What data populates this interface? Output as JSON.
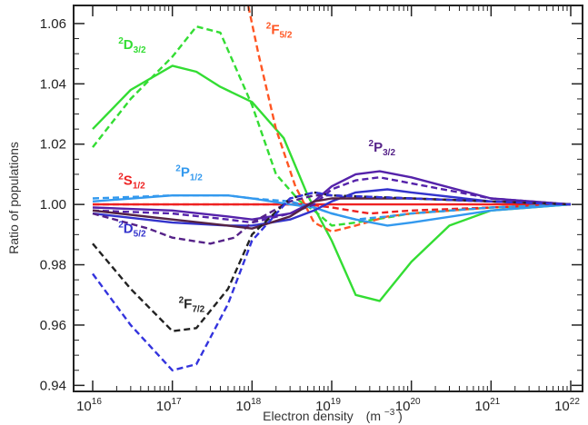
{
  "chart_data": {
    "type": "line",
    "xlabel": "Electron density",
    "xlabel_unit": "(m",
    "xlabel_unit_exp": "−3",
    "xlabel_unit_close": ")",
    "ylabel": "Ratio of populations",
    "x_scale": "log",
    "xlim": [
      1e+16,
      1e+22
    ],
    "ylim": [
      0.938,
      1.066
    ],
    "x_ticks": [
      {
        "value": 1e+16,
        "base": "10",
        "exp": "16"
      },
      {
        "value": 1e+17,
        "base": "10",
        "exp": "17"
      },
      {
        "value": 1e+18,
        "base": "10",
        "exp": "18"
      },
      {
        "value": 1e+19,
        "base": "10",
        "exp": "19"
      },
      {
        "value": 1e+20,
        "base": "10",
        "exp": "20"
      },
      {
        "value": 1e+21,
        "base": "10",
        "exp": "21"
      },
      {
        "value": 1e+22,
        "base": "10",
        "exp": "22"
      }
    ],
    "y_ticks": [
      {
        "value": 0.94,
        "label": "0.94"
      },
      {
        "value": 0.96,
        "label": "0.96"
      },
      {
        "value": 0.98,
        "label": "0.98"
      },
      {
        "value": 1.0,
        "label": "1.00"
      },
      {
        "value": 1.02,
        "label": "1.02"
      },
      {
        "value": 1.04,
        "label": "1.04"
      },
      {
        "value": 1.06,
        "label": "1.06"
      }
    ],
    "reference_line": 1.0,
    "series": [
      {
        "name": "2D3/2 solid",
        "color": "#33dd33",
        "dash": false,
        "x": [
          1e+16,
          3e+16,
          1e+17,
          2e+17,
          4e+17,
          1e+18,
          2.5e+18,
          5e+18,
          1e+19,
          2e+19,
          4e+19,
          1e+20,
          3e+20,
          1e+21,
          1e+22
        ],
        "y": [
          1.025,
          1.038,
          1.046,
          1.044,
          1.039,
          1.034,
          1.022,
          1.003,
          0.988,
          0.97,
          0.968,
          0.981,
          0.993,
          0.998,
          1.0
        ]
      },
      {
        "name": "2D3/2 dashed",
        "color": "#33dd33",
        "dash": true,
        "x": [
          1e+16,
          3e+16,
          1e+17,
          2e+17,
          4e+17,
          1e+18,
          2e+18,
          4e+18,
          6e+18,
          1e+19,
          2e+19,
          1e+20,
          1e+21,
          1e+22
        ],
        "y": [
          1.019,
          1.035,
          1.049,
          1.059,
          1.057,
          1.033,
          1.01,
          1.001,
          0.998,
          0.993,
          0.994,
          0.997,
          0.999,
          1.0
        ]
      },
      {
        "name": "2F5/2 dashed",
        "color": "#ff5522",
        "dash": true,
        "x": [
          9e+17,
          1.2e+18,
          2e+18,
          3.5e+18,
          6e+18,
          1e+19,
          2e+19,
          5e+19,
          1e+20,
          1e+21,
          1e+22
        ],
        "y": [
          1.066,
          1.05,
          1.025,
          1.006,
          0.994,
          0.991,
          0.993,
          0.996,
          0.997,
          0.999,
          1.0
        ]
      },
      {
        "name": "2S1/2 solid",
        "color": "#ee2222",
        "dash": false,
        "x": [
          1e+16,
          1e+17,
          1e+18,
          1e+19,
          1e+20,
          1e+21,
          1e+22
        ],
        "y": [
          1.0,
          1.0,
          1.0,
          1.0,
          1.0,
          1.0,
          1.0
        ]
      },
      {
        "name": "2S1/2 dashed",
        "color": "#ee2222",
        "dash": true,
        "x": [
          1e+16,
          1e+17,
          1e+18,
          5e+18,
          1e+19,
          3e+19,
          1e+20,
          1e+21,
          1e+22
        ],
        "y": [
          1.0,
          1.0,
          1.0,
          1.0,
          0.999,
          0.997,
          0.998,
          0.999,
          1.0
        ]
      },
      {
        "name": "2P1/2 solid",
        "color": "#3399ee",
        "dash": false,
        "x": [
          1e+16,
          1e+17,
          5e+17,
          1e+18,
          3e+18,
          6e+18,
          1e+19,
          2e+19,
          5e+19,
          1e+20,
          1e+21,
          1e+22
        ],
        "y": [
          1.001,
          1.003,
          1.003,
          1.002,
          1.0,
          0.999,
          0.997,
          0.995,
          0.993,
          0.994,
          0.998,
          1.0
        ]
      },
      {
        "name": "2P1/2 dashed",
        "color": "#3399ee",
        "dash": true,
        "x": [
          1e+16,
          1e+17,
          5e+17,
          1e+18,
          3e+18,
          6e+18,
          1e+19,
          2e+19,
          5e+19,
          1e+20,
          1e+21,
          1e+22
        ],
        "y": [
          1.002,
          1.003,
          1.003,
          1.002,
          1.001,
          0.999,
          0.997,
          0.995,
          0.996,
          0.997,
          0.999,
          1.0
        ]
      },
      {
        "name": "2P3/2 solid",
        "color": "#5522aa",
        "dash": false,
        "x": [
          1e+16,
          1e+17,
          5e+17,
          1e+18,
          3e+18,
          6e+18,
          1e+19,
          2e+19,
          4e+19,
          1e+20,
          1e+21,
          1e+22
        ],
        "y": [
          0.999,
          0.998,
          0.996,
          0.995,
          0.997,
          1.001,
          1.006,
          1.01,
          1.011,
          1.009,
          1.002,
          1.0
        ]
      },
      {
        "name": "2P3/2 dashed",
        "color": "#5522aa",
        "dash": true,
        "x": [
          1e+16,
          1e+17,
          5e+17,
          1e+18,
          3e+18,
          6e+18,
          1e+19,
          2e+19,
          4e+19,
          1e+20,
          1e+21,
          1e+22
        ],
        "y": [
          0.998,
          0.997,
          0.995,
          0.994,
          0.997,
          1.0,
          1.005,
          1.008,
          1.009,
          1.007,
          1.002,
          1.0
        ]
      },
      {
        "name": "2D5/2 solid",
        "color": "#3333cc",
        "dash": false,
        "x": [
          1e+16,
          1e+17,
          5e+17,
          1e+18,
          3e+18,
          6e+18,
          1e+19,
          2e+19,
          5e+19,
          1e+20,
          1e+21,
          1e+22
        ],
        "y": [
          0.997,
          0.994,
          0.993,
          0.993,
          0.995,
          0.998,
          1.001,
          1.004,
          1.005,
          1.004,
          1.001,
          1.0
        ]
      },
      {
        "name": "2D5/2 dashed",
        "color": "#552288",
        "dash": true,
        "x": [
          1e+16,
          5e+16,
          1e+17,
          3e+17,
          6e+17,
          1e+18,
          3e+18,
          6e+18,
          1e+19,
          1e+20,
          1e+21,
          1e+22
        ],
        "y": [
          0.997,
          0.992,
          0.989,
          0.987,
          0.989,
          0.994,
          1.001,
          1.003,
          1.003,
          1.002,
          1.001,
          1.0
        ]
      },
      {
        "name": "2F7/2 solid",
        "color": "#552244",
        "dash": false,
        "x": [
          1e+16,
          1e+17,
          5e+17,
          1e+18,
          3e+18,
          6e+18,
          1e+19,
          1e+20,
          1e+21,
          1e+22
        ],
        "y": [
          0.998,
          0.995,
          0.993,
          0.992,
          0.996,
          1.001,
          1.002,
          1.002,
          1.001,
          1.0
        ]
      },
      {
        "name": "2F7/2 dashed",
        "color": "#222222",
        "dash": true,
        "x": [
          1e+16,
          3e+16,
          1e+17,
          2e+17,
          5e+17,
          1e+18,
          3e+18,
          6e+18,
          1e+19,
          1e+20,
          1e+21,
          1e+22
        ],
        "y": [
          0.987,
          0.972,
          0.958,
          0.959,
          0.972,
          0.99,
          1.002,
          1.004,
          1.003,
          1.002,
          1.001,
          1.0
        ]
      },
      {
        "name": "2D5/2 blue dashed",
        "color": "#3333dd",
        "dash": true,
        "x": [
          1e+16,
          3e+16,
          1e+17,
          2e+17,
          5e+17,
          1e+18,
          3e+18,
          6e+18,
          1e+19,
          1e+20,
          1e+21,
          1e+22
        ],
        "y": [
          0.977,
          0.96,
          0.945,
          0.947,
          0.967,
          0.988,
          1.002,
          1.004,
          1.003,
          1.002,
          1.001,
          1.0
        ]
      }
    ],
    "annotations": [
      {
        "sup": "2",
        "main": "D",
        "sub": "3/2",
        "color": "#33dd33",
        "x": 2.1e+16,
        "y": 1.0515
      },
      {
        "sup": "2",
        "main": "F",
        "sub": "5/2",
        "color": "#ff5522",
        "x": 1.5e+18,
        "y": 1.0565
      },
      {
        "sup": "2",
        "main": "S",
        "sub": "1/2",
        "color": "#ee2222",
        "x": 2.1e+16,
        "y": 1.0065
      },
      {
        "sup": "2",
        "main": "P",
        "sub": "1/2",
        "color": "#3399ee",
        "x": 1.1e+17,
        "y": 1.0093
      },
      {
        "sup": "2",
        "main": "P",
        "sub": "3/2",
        "color": "#552288",
        "x": 2.9e+19,
        "y": 1.0175
      },
      {
        "sup": "2",
        "main": "D",
        "sub": "5/2",
        "color": "#3333cc",
        "x": 2.1e+16,
        "y": 0.9905
      },
      {
        "sup": "2",
        "main": "F",
        "sub": "7/2",
        "color": "#222222",
        "x": 1.2e+17,
        "y": 0.9655
      }
    ]
  }
}
